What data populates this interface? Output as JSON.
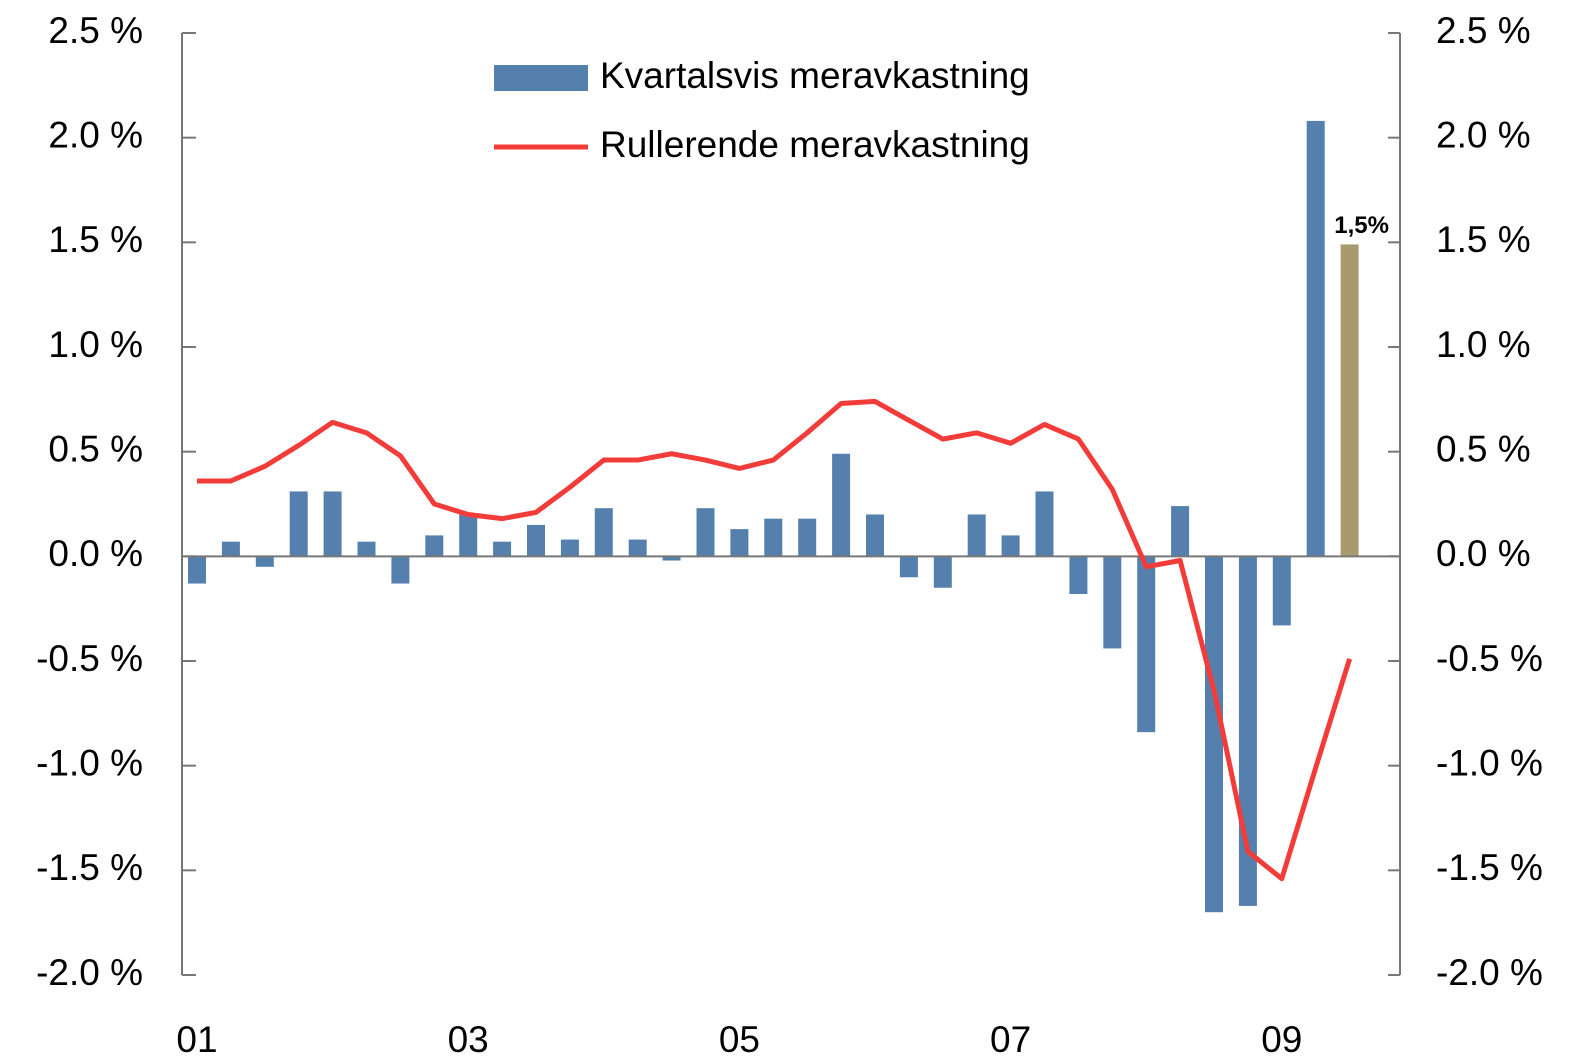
{
  "chart_data": {
    "type": "bar",
    "categories": [
      "01",
      null,
      null,
      null,
      null,
      null,
      null,
      null,
      "03",
      null,
      null,
      null,
      null,
      null,
      null,
      null,
      "05",
      null,
      null,
      null,
      null,
      null,
      null,
      null,
      "07",
      null,
      null,
      null,
      null,
      null,
      null,
      null,
      "09",
      null,
      null
    ],
    "series": [
      {
        "name": "Kvartalsvis meravkastning",
        "type": "bar",
        "color": "#5580ae",
        "colors": [
          "#5580ae",
          "#5580ae",
          "#5580ae",
          "#5580ae",
          "#5580ae",
          "#5580ae",
          "#5580ae",
          "#5580ae",
          "#5580ae",
          "#5580ae",
          "#5580ae",
          "#5580ae",
          "#5580ae",
          "#5580ae",
          "#5580ae",
          "#5580ae",
          "#5580ae",
          "#5580ae",
          "#5580ae",
          "#5580ae",
          "#5580ae",
          "#5580ae",
          "#5580ae",
          "#5580ae",
          "#5580ae",
          "#5580ae",
          "#5580ae",
          "#5580ae",
          "#5580ae",
          "#5580ae",
          "#5580ae",
          "#5580ae",
          "#5580ae",
          "#5580ae",
          "#a89a6c"
        ],
        "values": [
          -0.13,
          0.07,
          -0.05,
          0.31,
          0.31,
          0.07,
          -0.13,
          0.1,
          0.2,
          0.07,
          0.15,
          0.08,
          0.23,
          0.08,
          -0.02,
          0.23,
          0.13,
          0.18,
          0.18,
          0.49,
          0.2,
          -0.1,
          -0.15,
          0.2,
          0.1,
          0.31,
          -0.18,
          -0.44,
          -0.84,
          0.24,
          -1.7,
          -1.67,
          -0.33,
          2.08,
          1.49
        ],
        "value_labels": [
          null,
          null,
          null,
          null,
          null,
          null,
          null,
          null,
          null,
          null,
          null,
          null,
          null,
          null,
          null,
          null,
          null,
          null,
          null,
          null,
          null,
          null,
          null,
          null,
          null,
          null,
          null,
          null,
          null,
          null,
          null,
          null,
          null,
          null,
          "1,5%"
        ]
      },
      {
        "name": "Rullerende meravkastning",
        "type": "line",
        "color": "#f23c3a",
        "values": [
          0.36,
          0.36,
          0.43,
          0.53,
          0.64,
          0.59,
          0.48,
          0.25,
          0.2,
          0.18,
          0.21,
          0.33,
          0.46,
          0.46,
          0.49,
          0.46,
          0.42,
          0.46,
          0.59,
          0.73,
          0.74,
          0.65,
          0.56,
          0.59,
          0.54,
          0.63,
          0.56,
          0.32,
          -0.05,
          -0.02,
          -0.64,
          -1.41,
          -1.54,
          -1.01,
          -0.49
        ]
      }
    ],
    "ylim": [
      -2.0,
      2.5
    ],
    "yticks": [
      {
        "value": -2.0,
        "label": "-2.0 %"
      },
      {
        "value": -1.5,
        "label": "-1.5 %"
      },
      {
        "value": -1.0,
        "label": "-1.0 %"
      },
      {
        "value": -0.5,
        "label": "-0.5 %"
      },
      {
        "value": 0.0,
        "label": "0.0 %"
      },
      {
        "value": 0.5,
        "label": "0.5 %"
      },
      {
        "value": 1.0,
        "label": "1.0 %"
      },
      {
        "value": 1.5,
        "label": "1.5 %"
      },
      {
        "value": 2.0,
        "label": "2.0 %"
      },
      {
        "value": 2.5,
        "label": "2.5 %"
      }
    ],
    "y2lim": [
      -2.0,
      2.5
    ],
    "y2ticks": [
      {
        "value": -2.0,
        "label": "-2.0 %"
      },
      {
        "value": -1.5,
        "label": "-1.5 %"
      },
      {
        "value": -1.0,
        "label": "-1.0 %"
      },
      {
        "value": -0.5,
        "label": "-0.5 %"
      },
      {
        "value": 0.0,
        "label": "0.0 %"
      },
      {
        "value": 0.5,
        "label": "0.5 %"
      },
      {
        "value": 1.0,
        "label": "1.0 %"
      },
      {
        "value": 1.5,
        "label": "1.5 %"
      },
      {
        "value": 2.0,
        "label": "2.0 %"
      },
      {
        "value": 2.5,
        "label": "2.5 %"
      }
    ],
    "grid": false,
    "legend": "top"
  }
}
